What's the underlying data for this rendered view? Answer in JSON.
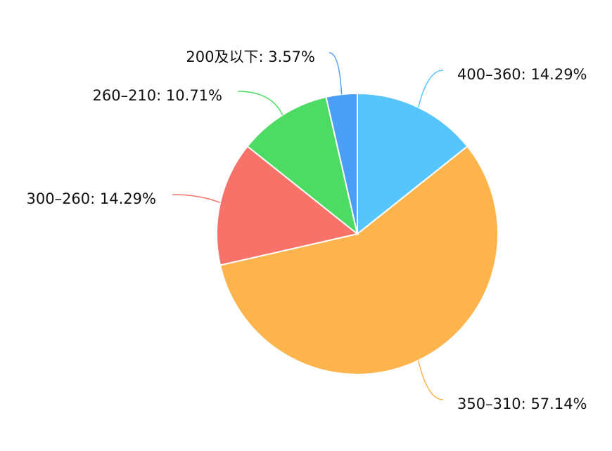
{
  "chart_data": {
    "type": "pie",
    "categories": [
      "400–360",
      "350–310",
      "300–260",
      "260–210",
      "200及以下"
    ],
    "values": [
      14.29,
      57.14,
      14.29,
      10.71,
      3.57
    ],
    "value_labels": [
      "14.29%",
      "57.14%",
      "14.29%",
      "10.71%",
      "3.57%"
    ],
    "label_separator": ": ",
    "colors": [
      "#56c5fb",
      "#fdb44d",
      "#f7736a",
      "#4cdc63",
      "#4a9ef6"
    ]
  }
}
